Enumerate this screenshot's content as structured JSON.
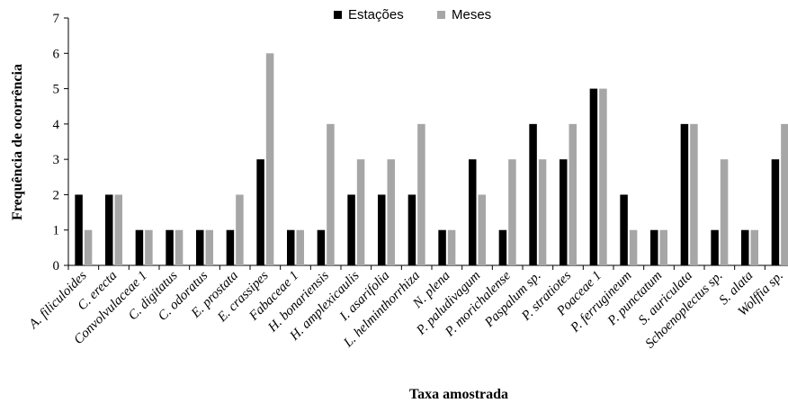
{
  "chart_data": {
    "type": "bar",
    "title": "",
    "xlabel": "Taxa amostrada",
    "ylabel": "Frequência de ocorrência",
    "ylim": [
      0,
      7
    ],
    "yticks": [
      "0",
      "1",
      "2",
      "3",
      "4",
      "5",
      "6",
      "7"
    ],
    "grid": false,
    "legend_position": "top-center",
    "categories": [
      "A. filiculoides",
      "C. erecta",
      "Convolvulaceae 1",
      "C. digitatus",
      "C. odoratus",
      "E. prostata",
      "E. crassipes",
      "Fabaceae 1",
      "H. bonariensis",
      "H. amplexicaulis",
      "I. asarifolia",
      "L. helminthorrhiza",
      "N. plena",
      "P. paludivagum",
      "P. morichalense",
      "Paspalum sp.",
      "P. stratiotes",
      "Poaceae 1",
      "P. ferrugineum",
      "P. punctatum",
      "S. auriculata",
      "Schoenoplectus sp.",
      "S. alata",
      "Wolffia sp."
    ],
    "series": [
      {
        "name": "Estações",
        "color": "#000000",
        "values": [
          2,
          2,
          1,
          1,
          1,
          1,
          3,
          1,
          1,
          2,
          2,
          2,
          1,
          3,
          1,
          4,
          3,
          5,
          2,
          1,
          4,
          1,
          1,
          3
        ]
      },
      {
        "name": "Meses",
        "color": "#a6a6a6",
        "values": [
          1,
          2,
          1,
          1,
          1,
          2,
          6,
          1,
          4,
          3,
          3,
          4,
          1,
          2,
          3,
          3,
          4,
          5,
          1,
          1,
          4,
          3,
          1,
          4
        ]
      }
    ]
  }
}
